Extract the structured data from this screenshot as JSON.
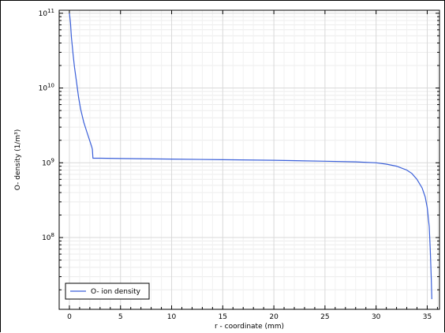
{
  "chart_data": {
    "type": "line",
    "title": "",
    "xlabel": "r - coordinate (mm)",
    "ylabel": "O- density (1/m³)",
    "xlim": [
      -1,
      36.2
    ],
    "ylim_log10": [
      7.04,
      11.04
    ],
    "yscale": "log",
    "grid": true,
    "legend_position": "bottom-left",
    "x_ticks": [
      0,
      5,
      10,
      15,
      20,
      25,
      30,
      35
    ],
    "x_tick_labels": [
      "0",
      "5",
      "10",
      "15",
      "20",
      "25",
      "30",
      "35"
    ],
    "y_ticks": [
      {
        "base": "10",
        "exp": "8",
        "value": 100000000.0
      },
      {
        "base": "10",
        "exp": "9",
        "value": 1000000000.0
      },
      {
        "base": "10",
        "exp": "10",
        "value": 10000000000.0
      },
      {
        "base": "10",
        "exp": "11",
        "value": 100000000000.0
      }
    ],
    "series": [
      {
        "name": "O- ion density",
        "color": "#3a5fd9",
        "x": [
          0,
          0.1,
          0.2,
          0.35,
          0.5,
          0.7,
          0.9,
          1.1,
          1.4,
          1.7,
          2.0,
          2.2,
          2.25,
          2.3,
          3,
          5,
          10,
          15,
          20,
          25,
          28,
          30,
          31,
          32,
          33,
          33.5,
          34,
          34.5,
          34.8,
          35.0,
          35.2,
          35.3,
          35.4,
          35.45
        ],
        "y": [
          100000000000.0,
          75000000000.0,
          48000000000.0,
          29000000000.0,
          19000000000.0,
          12000000000.0,
          7500000000.0,
          5200000000.0,
          3500000000.0,
          2600000000.0,
          1950000000.0,
          1600000000.0,
          1500000000.0,
          1150000000.0,
          1150000000.0,
          1140000000.0,
          1120000000.0,
          1100000000.0,
          1080000000.0,
          1050000000.0,
          1030000000.0,
          1000000000.0,
          960000000.0,
          900000000.0,
          800000000.0,
          720000000.0,
          600000000.0,
          460000000.0,
          350000000.0,
          250000000.0,
          140000000.0,
          70000000.0,
          28000000.0,
          15000000.0
        ]
      }
    ]
  }
}
